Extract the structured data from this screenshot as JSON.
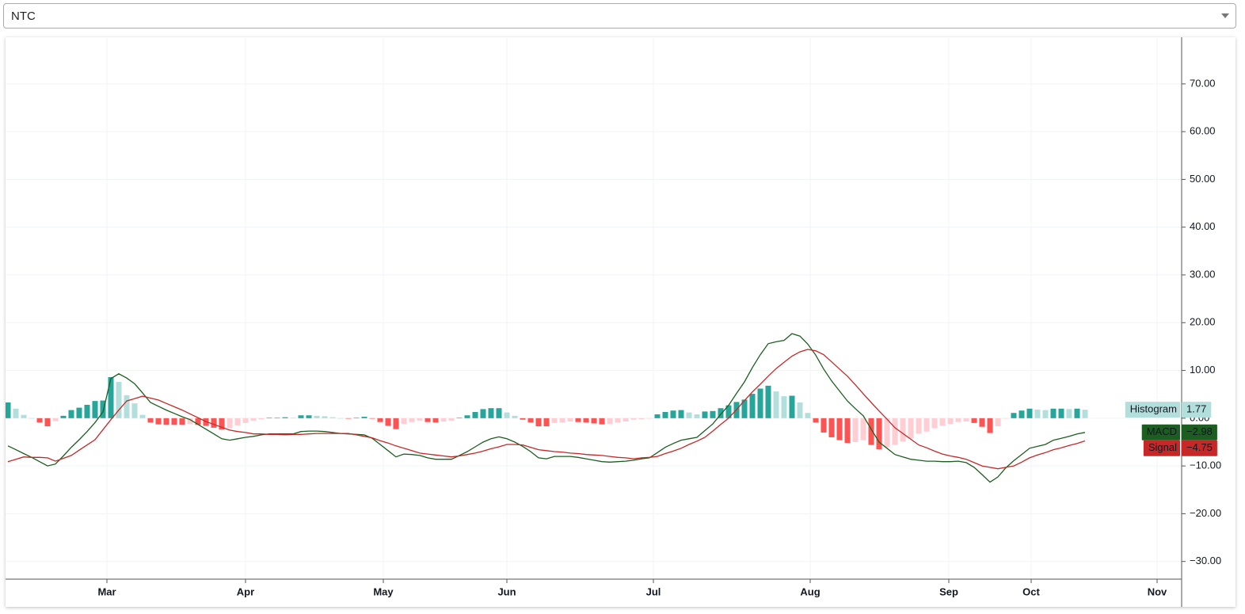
{
  "selector": {
    "value": "NTC"
  },
  "chart_data": {
    "type": "line",
    "xlim": [
      -0.3,
      148.2
    ],
    "xticks": [
      {
        "value": 12.5,
        "label": "Mar"
      },
      {
        "value": 30,
        "label": "Apr"
      },
      {
        "value": 47.4,
        "label": "May"
      },
      {
        "value": 63,
        "label": "Jun"
      },
      {
        "value": 81.5,
        "label": "Jul"
      },
      {
        "value": 101.3,
        "label": "Aug"
      },
      {
        "value": 118.8,
        "label": "Sep"
      },
      {
        "value": 129.2,
        "label": "Oct"
      },
      {
        "value": 145.1,
        "label": "Nov"
      }
    ],
    "ylim": [
      -33.7,
      79.6
    ],
    "yticks": [
      {
        "value": 70,
        "label": "70.00"
      },
      {
        "value": 60,
        "label": "60.00"
      },
      {
        "value": 50,
        "label": "50.00"
      },
      {
        "value": 40,
        "label": "40.00"
      },
      {
        "value": 30,
        "label": "30.00"
      },
      {
        "value": 20,
        "label": "20.00"
      },
      {
        "value": 10,
        "label": "10.00"
      },
      {
        "value": 0,
        "label": "0.00"
      },
      {
        "value": -10,
        "label": "−10.00"
      },
      {
        "value": -20,
        "label": "−20.00"
      },
      {
        "value": -30,
        "label": "−30.00"
      }
    ],
    "grid": true,
    "series": [
      {
        "name": "Histogram",
        "type": "histogram",
        "color": "#b2dfdb",
        "colors": {
          "rising_above": "#26a69a",
          "falling_above": "#b2dfdb",
          "falling_below": "#ff5252",
          "rising_below": "#ffcdd2"
        },
        "last_value_label": "1.77",
        "values": [
          3.3,
          2.0,
          0.7,
          0.0,
          -0.9,
          -1.7,
          -0.6,
          0.5,
          1.7,
          2.2,
          2.8,
          3.6,
          3.7,
          8.6,
          7.6,
          4.8,
          3.1,
          0.7,
          -0.9,
          -1.3,
          -1.4,
          -1.4,
          -1.4,
          -1.2,
          -1.4,
          -1.6,
          -2.0,
          -2.4,
          -2.1,
          -1.5,
          -1.0,
          -0.5,
          -0.2,
          0.1,
          0.1,
          0.2,
          0.1,
          0.6,
          0.6,
          0.5,
          0.4,
          0.2,
          0.0,
          -0.1,
          0.1,
          0.3,
          -0.1,
          -0.8,
          -1.6,
          -2.3,
          -1.2,
          -0.8,
          -0.5,
          -0.8,
          -0.9,
          -0.7,
          -0.5,
          0.1,
          0.6,
          1.3,
          1.9,
          2.1,
          2.1,
          1.2,
          0.5,
          -0.3,
          -0.9,
          -1.7,
          -1.7,
          -1.0,
          -0.9,
          -0.7,
          -0.8,
          -0.9,
          -1.1,
          -1.3,
          -1.2,
          -0.9,
          -0.7,
          -0.3,
          -0.2,
          -0.1,
          0.8,
          1.3,
          1.6,
          1.7,
          1.2,
          0.8,
          1.4,
          1.5,
          2.1,
          2.7,
          3.4,
          3.9,
          5.1,
          6.2,
          6.8,
          5.6,
          4.6,
          4.7,
          3.3,
          1.1,
          -0.9,
          -3.0,
          -4.0,
          -4.6,
          -5.2,
          -5.0,
          -4.6,
          -5.6,
          -6.5,
          -6.1,
          -5.6,
          -4.9,
          -4.2,
          -3.2,
          -2.8,
          -2.1,
          -1.6,
          -1.2,
          -0.8,
          -0.7,
          -1.0,
          -1.8,
          -3.1,
          -1.7,
          -0.1,
          1.1,
          1.6,
          2.0,
          1.8,
          1.7,
          2.0,
          2.0,
          1.9,
          2.0,
          1.77
        ]
      },
      {
        "name": "MACD",
        "type": "line",
        "color": "#1b5e20",
        "last_value_label": "−2.98",
        "values": [
          -5.8,
          -6.6,
          -7.4,
          -8.2,
          -9.1,
          -10,
          -9.6,
          -7.9,
          -6.1,
          -4.5,
          -2.8,
          -0.9,
          1.3,
          8.3,
          9.3,
          8.4,
          7.2,
          5.3,
          3.3,
          2.5,
          1.7,
          1.0,
          0.3,
          -0.3,
          -1.3,
          -2.3,
          -3.3,
          -4.3,
          -4.6,
          -4.3,
          -4.0,
          -3.8,
          -3.5,
          -3.3,
          -3.3,
          -3.3,
          -3.3,
          -2.8,
          -2.7,
          -2.7,
          -2.8,
          -3.0,
          -3.2,
          -3.3,
          -3.4,
          -3.5,
          -4.2,
          -5.5,
          -6.8,
          -8.1,
          -7.5,
          -7.6,
          -7.8,
          -8.3,
          -8.6,
          -8.6,
          -8.6,
          -7.8,
          -7.0,
          -6.0,
          -5.0,
          -4.3,
          -3.9,
          -4.3,
          -5.0,
          -5.9,
          -7.0,
          -8.3,
          -8.5,
          -8.0,
          -8.0,
          -8.0,
          -8.2,
          -8.5,
          -8.8,
          -9.1,
          -9.2,
          -9.1,
          -9.0,
          -8.8,
          -8.5,
          -8.3,
          -7.2,
          -6.1,
          -5.3,
          -4.6,
          -4.3,
          -4.0,
          -2.6,
          -1.2,
          0.8,
          2.7,
          5.2,
          7.6,
          10.6,
          13.3,
          15.6,
          16.0,
          16.3,
          17.7,
          17.2,
          15.5,
          13.2,
          10.3,
          7.8,
          5.7,
          3.6,
          2.0,
          0.5,
          -2.3,
          -5.0,
          -6.3,
          -7.6,
          -8.1,
          -8.6,
          -8.8,
          -9.0,
          -9.0,
          -9.1,
          -9.1,
          -9.0,
          -9.3,
          -10.3,
          -11.8,
          -13.4,
          -12.3,
          -10.4,
          -8.9,
          -7.6,
          -6.3,
          -5.9,
          -5.5,
          -4.6,
          -4.2,
          -3.8,
          -3.3,
          -2.98
        ]
      },
      {
        "name": "Signal",
        "type": "line",
        "color": "#c62828",
        "last_value_label": "−4.75",
        "values": [
          -9.1,
          -8.6,
          -8.1,
          -8.2,
          -8.2,
          -8.3,
          -9.0,
          -8.4,
          -7.8,
          -6.7,
          -5.6,
          -4.5,
          -2.4,
          -0.3,
          1.7,
          3.6,
          4.1,
          4.6,
          4.2,
          3.8,
          3.1,
          2.4,
          1.7,
          0.9,
          0.1,
          -0.7,
          -1.3,
          -1.9,
          -2.5,
          -2.8,
          -3.0,
          -3.3,
          -3.3,
          -3.4,
          -3.4,
          -3.5,
          -3.4,
          -3.4,
          -3.3,
          -3.2,
          -3.2,
          -3.2,
          -3.2,
          -3.2,
          -3.5,
          -3.8,
          -4.1,
          -4.7,
          -5.2,
          -5.8,
          -6.3,
          -6.8,
          -7.3,
          -7.5,
          -7.7,
          -7.9,
          -8.1,
          -7.9,
          -7.6,
          -7.3,
          -6.9,
          -6.4,
          -6.0,
          -5.5,
          -5.5,
          -5.6,
          -6.1,
          -6.6,
          -6.8,
          -7.0,
          -7.1,
          -7.3,
          -7.4,
          -7.6,
          -7.7,
          -7.8,
          -8.0,
          -8.2,
          -8.3,
          -8.5,
          -8.3,
          -8.2,
          -8.0,
          -7.4,
          -6.9,
          -6.3,
          -5.5,
          -4.8,
          -4.0,
          -2.7,
          -1.3,
          0.0,
          1.8,
          3.7,
          5.5,
          7.1,
          8.8,
          10.4,
          11.7,
          13.0,
          13.9,
          14.4,
          14.1,
          13.3,
          11.8,
          10.3,
          8.8,
          7.0,
          5.1,
          3.3,
          1.5,
          -0.2,
          -2.0,
          -3.2,
          -4.4,
          -5.6,
          -6.2,
          -6.9,
          -7.5,
          -7.9,
          -8.2,
          -8.6,
          -9.3,
          -10.0,
          -10.3,
          -10.6,
          -10.3,
          -10.0,
          -9.2,
          -8.3,
          -7.7,
          -7.2,
          -6.6,
          -6.2,
          -5.7,
          -5.3,
          -4.75
        ]
      }
    ]
  }
}
